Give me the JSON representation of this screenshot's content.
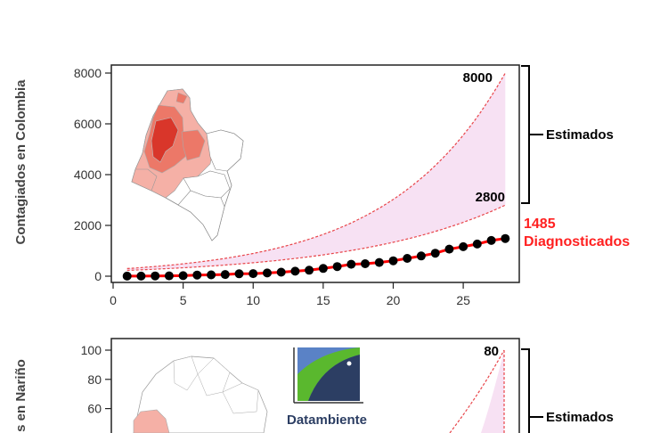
{
  "chart_data": [
    {
      "type": "line",
      "ylabel": "Contagiados en Colombia",
      "xlim": [
        0,
        29
      ],
      "ylim": [
        0,
        8000
      ],
      "xticks": [
        0,
        5,
        10,
        15,
        20,
        25
      ],
      "yticks": [
        0,
        2000,
        4000,
        6000,
        8000
      ],
      "x": [
        1,
        2,
        3,
        4,
        5,
        6,
        7,
        8,
        9,
        10,
        11,
        12,
        13,
        14,
        15,
        16,
        17,
        18,
        19,
        20,
        21,
        22,
        23,
        24,
        25,
        26,
        27,
        28
      ],
      "series": [
        {
          "name": "Diagnosticados",
          "values": [
            3,
            3,
            9,
            13,
            22,
            45,
            53,
            65,
            93,
            102,
            128,
            158,
            196,
            235,
            306,
            378,
            470,
            491,
            539,
            608,
            702,
            798,
            906,
            1065,
            1161,
            1267,
            1406,
            1485
          ]
        },
        {
          "name": "Estimados",
          "upper_end": 8000,
          "lower_end": 2800,
          "upper_start": 300,
          "lower_start": 230
        }
      ],
      "annotations": {
        "upper_value": "8000",
        "lower_value": "2800",
        "diag_value": "1485",
        "diag_label": "Diagnosticados",
        "estimados_label": "Estimados"
      }
    },
    {
      "type": "line",
      "ylabel": "s en Nariño",
      "ylim": [
        0,
        100
      ],
      "yticks": [
        60,
        80,
        100
      ],
      "annotations": {
        "upper_value": "80",
        "estimados_label": "Estimados"
      }
    }
  ],
  "logo": {
    "text": "Datambiente"
  },
  "colors": {
    "band_fill": "#f7e1f3",
    "estimate_line": "#e8454a",
    "diag_line": "#ff0000",
    "diag_points": "#000000",
    "diag_text": "#ff2020",
    "map_dark": "#d9362a",
    "map_mid": "#ec7868",
    "map_light": "#f5b0a6"
  }
}
